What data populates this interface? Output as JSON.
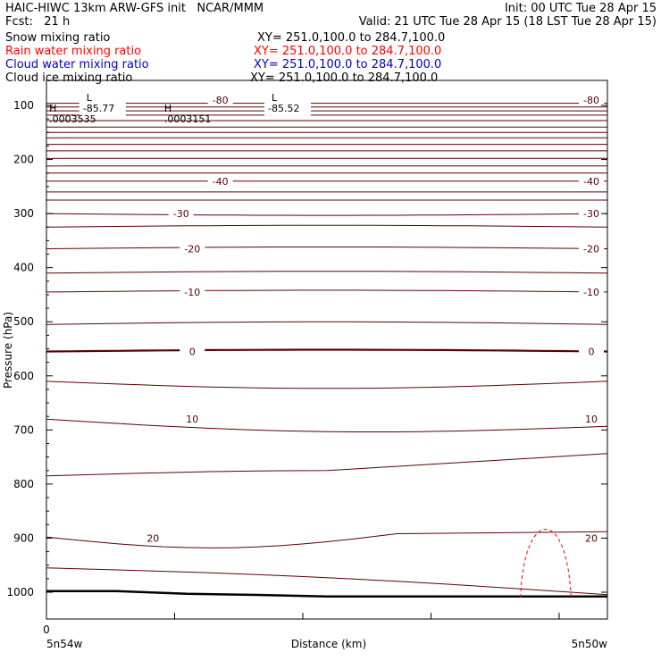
{
  "header": {
    "line1_left": "HAIC-HIWC 13km ARW-GFS init   NCAR/MMM",
    "line1_right": "Init: 00 UTC Tue 28 Apr 15",
    "line2_left": "Fcst:   21 h",
    "line2_right": "Valid: 21 UTC Tue 28 Apr 15 (18 LST Tue 28 Apr 15)",
    "fields": [
      {
        "name": "Snow mixing ratio",
        "xy": "XY= 251.0,100.0 to 284.7,100.0",
        "color": "#000000"
      },
      {
        "name": "Rain water mixing ratio",
        "xy": "XY= 251.0,100.0 to 284.7,100.0",
        "color": "#ff0000"
      },
      {
        "name": "Cloud water mixing ratio",
        "xy": "XY= 251.0,100.0 to 284.7,100.0",
        "color": "#0000cc"
      },
      {
        "name": "Cloud ice mixing ratio",
        "xy": "XY= 251.0,100.0 to 284.7,100.0",
        "color": "#000000"
      }
    ]
  },
  "chart_data": {
    "type": "line",
    "xlabel": "Distance (km)",
    "ylabel": "Pressure (hPa)",
    "x_tick_labels": [
      "0"
    ],
    "x_end_labels": [
      "5n54w",
      "5n50w"
    ],
    "y_ticks": [
      100,
      200,
      300,
      400,
      500,
      600,
      700,
      800,
      900,
      1000
    ],
    "contour_labels": [
      {
        "text": "-80",
        "x": 0.31,
        "p": 90,
        "right": "-80"
      },
      {
        "text": "-40",
        "x": 0.31,
        "p": 240,
        "right": "-40"
      },
      {
        "text": "-30",
        "x": 0.24,
        "p": 300,
        "right": "-30"
      },
      {
        "text": "-20",
        "x": 0.26,
        "p": 365,
        "right": "-20"
      },
      {
        "text": "-10",
        "x": 0.26,
        "p": 445,
        "right": "-10"
      },
      {
        "text": "0",
        "x": 0.26,
        "p": 555,
        "right": "0"
      },
      {
        "text": "10",
        "x": 0.26,
        "p": 680,
        "right": "10"
      },
      {
        "text": "20",
        "x": 0.19,
        "p": 900,
        "right": "20"
      }
    ],
    "extrema": [
      {
        "kind": "L",
        "value": "-85.77",
        "x": 0.1,
        "p": 75
      },
      {
        "kind": "L",
        "value": "-85.52",
        "x": 0.43,
        "p": 75
      },
      {
        "kind": "H",
        "value": ".0003535",
        "x": 0.005,
        "p": 95
      },
      {
        "kind": "H",
        "value": ".0003151",
        "x": 0.21,
        "p": 95
      }
    ],
    "ground_pressure": [
      998,
      998,
      1003,
      1005,
      1008,
      1008,
      1008,
      1008,
      1008
    ],
    "rain_dome": {
      "x_start": 0.845,
      "x_end": 0.935,
      "p_base": 1010,
      "p_top": 891
    }
  }
}
